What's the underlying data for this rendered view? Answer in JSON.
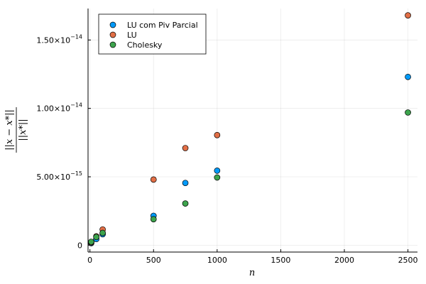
{
  "chart_data": {
    "type": "scatter",
    "xlabel": "n",
    "ylabel": "||x − x*|| / ||x*||",
    "xlim": [
      -15,
      2575
    ],
    "ylim": [
      -5e-16,
      1.73e-14
    ],
    "xticks": [
      0,
      500,
      1000,
      1500,
      2000,
      2500
    ],
    "xtick_labels": [
      "0",
      "500",
      "1000",
      "1500",
      "2000",
      "2500"
    ],
    "yticks": [
      0,
      5e-15,
      1e-14,
      1.5e-14
    ],
    "ytick_labels": [
      {
        "mantissa": "0",
        "exponent": ""
      },
      {
        "mantissa": "5.00×10",
        "exponent": "−15"
      },
      {
        "mantissa": "1.00×10",
        "exponent": "−14"
      },
      {
        "mantissa": "1.50×10",
        "exponent": "−14"
      }
    ],
    "grid": true,
    "legend_position": "top-left",
    "x": [
      10,
      50,
      100,
      500,
      750,
      1000,
      2500
    ],
    "series": [
      {
        "name": "LU com Piv Parcial",
        "color": "#009AFA",
        "values": [
          1.5e-16,
          4.5e-16,
          8e-16,
          2.15e-15,
          4.55e-15,
          5.45e-15,
          1.23e-14
        ]
      },
      {
        "name": "LU",
        "color": "#E26F46",
        "values": [
          2e-16,
          6.5e-16,
          1.15e-15,
          4.8e-15,
          7.1e-15,
          8.05e-15,
          1.68e-14
        ]
      },
      {
        "name": "Cholesky",
        "color": "#3DA44D",
        "values": [
          2.5e-16,
          6e-16,
          9e-16,
          1.9e-15,
          3.05e-15,
          4.95e-15,
          9.7e-15
        ]
      }
    ]
  }
}
